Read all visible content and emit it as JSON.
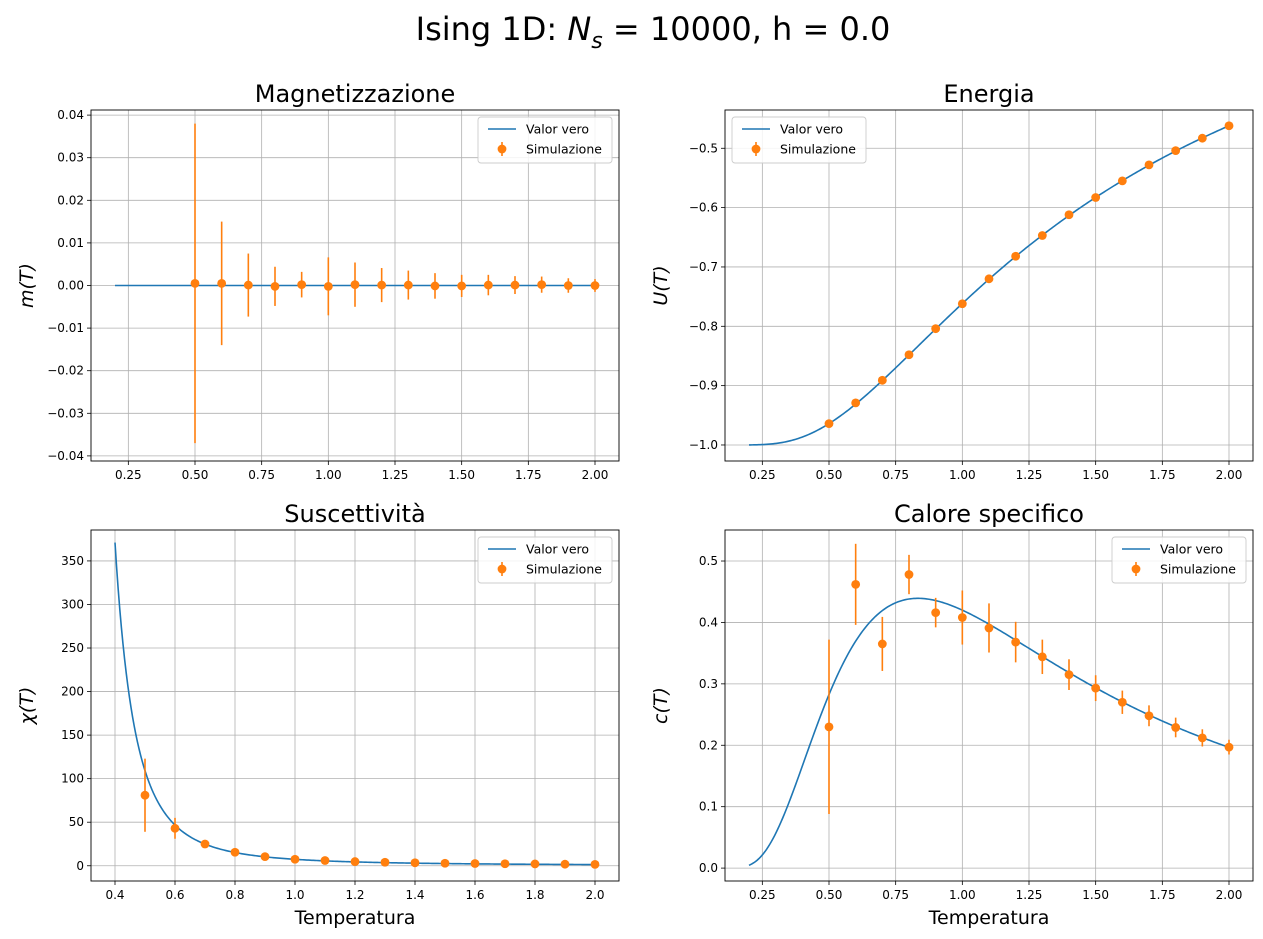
{
  "figure": {
    "suptitle_prefix": "Ising 1D: ",
    "suptitle_symbol": "N",
    "suptitle_subscript": "s",
    "suptitle_suffix": " = 10000, h = 0.0"
  },
  "colors": {
    "theory": "#1f77b4",
    "simulation": "#ff7f0e",
    "grid": "#b0b0b0"
  },
  "chart_data": [
    {
      "type": "line",
      "title": "Magnetizzazione",
      "xlabel": "",
      "ylabel": "m(T)",
      "xlim": [
        0.11,
        2.09
      ],
      "ylim": [
        -0.0412,
        0.0412
      ],
      "xticks": [
        0.25,
        0.5,
        0.75,
        1.0,
        1.25,
        1.5,
        1.75,
        2.0
      ],
      "xtick_labels": [
        "0.25",
        "0.50",
        "0.75",
        "1.00",
        "1.25",
        "1.50",
        "1.75",
        "2.00"
      ],
      "yticks": [
        -0.04,
        -0.03,
        -0.02,
        -0.01,
        0.0,
        0.01,
        0.02,
        0.03,
        0.04
      ],
      "ytick_labels": [
        "−0.04",
        "−0.03",
        "−0.02",
        "−0.01",
        "0.00",
        "0.01",
        "0.02",
        "0.03",
        "0.04"
      ],
      "grid": true,
      "legend_position": "top-right",
      "series": [
        {
          "name": "Valor vero",
          "kind": "line",
          "x": [
            0.2,
            2.0
          ],
          "y": [
            0.0,
            0.0
          ]
        },
        {
          "name": "Simulazione",
          "kind": "errorbar",
          "x": [
            0.5,
            0.6,
            0.7,
            0.8,
            0.9,
            1.0,
            1.1,
            1.2,
            1.3,
            1.4,
            1.5,
            1.6,
            1.7,
            1.8,
            1.9,
            2.0
          ],
          "y": [
            0.0005,
            0.0005,
            0.0001,
            -0.0002,
            0.0002,
            -0.0002,
            0.0002,
            0.0001,
            0.0001,
            -0.0001,
            -0.0001,
            0.0001,
            0.0001,
            0.0002,
            0.0,
            0.0
          ],
          "yerr": [
            0.0375,
            0.0145,
            0.0074,
            0.0046,
            0.003,
            0.0068,
            0.0052,
            0.004,
            0.0034,
            0.003,
            0.0026,
            0.0024,
            0.0021,
            0.0019,
            0.0017,
            0.0015
          ]
        }
      ]
    },
    {
      "type": "line",
      "title": "Energia",
      "xlabel": "",
      "ylabel": "U(T)",
      "xlim": [
        0.11,
        2.09
      ],
      "ylim": [
        -1.027,
        -0.4355
      ],
      "xticks": [
        0.25,
        0.5,
        0.75,
        1.0,
        1.25,
        1.5,
        1.75,
        2.0
      ],
      "xtick_labels": [
        "0.25",
        "0.50",
        "0.75",
        "1.00",
        "1.25",
        "1.50",
        "1.75",
        "2.00"
      ],
      "yticks": [
        -1.0,
        -0.9,
        -0.8,
        -0.7,
        -0.6,
        -0.5
      ],
      "ytick_labels": [
        "−1.0",
        "−0.9",
        "−0.8",
        "−0.7",
        "−0.6",
        "−0.5"
      ],
      "grid": true,
      "legend_position": "top-left",
      "series": [
        {
          "name": "Valor vero",
          "kind": "line",
          "function": "energy",
          "x_range": [
            0.2,
            2.0
          ]
        },
        {
          "name": "Simulazione",
          "kind": "errorbar",
          "x": [
            0.5,
            0.6,
            0.7,
            0.8,
            0.9,
            1.0,
            1.1,
            1.2,
            1.3,
            1.4,
            1.5,
            1.6,
            1.7,
            1.8,
            1.9,
            2.0
          ],
          "y": [
            -0.964,
            -0.929,
            -0.891,
            -0.848,
            -0.804,
            -0.762,
            -0.72,
            -0.682,
            -0.647,
            -0.612,
            -0.583,
            -0.555,
            -0.528,
            -0.504,
            -0.483,
            -0.462
          ],
          "yerr": [
            0.004,
            0.004,
            0.004,
            0.004,
            0.004,
            0.004,
            0.004,
            0.004,
            0.004,
            0.004,
            0.004,
            0.004,
            0.004,
            0.004,
            0.004,
            0.004
          ]
        }
      ]
    },
    {
      "type": "line",
      "title": "Suscettività",
      "xlabel": "Temperatura",
      "ylabel": "χ(T)",
      "xlim": [
        0.32,
        2.08
      ],
      "ylim": [
        -17.5,
        385.5
      ],
      "xticks": [
        0.4,
        0.6,
        0.8,
        1.0,
        1.2,
        1.4,
        1.6,
        1.8,
        2.0
      ],
      "xtick_labels": [
        "0.4",
        "0.6",
        "0.8",
        "1.0",
        "1.2",
        "1.4",
        "1.6",
        "1.8",
        "2.0"
      ],
      "yticks": [
        0,
        50,
        100,
        150,
        200,
        250,
        300,
        350
      ],
      "ytick_labels": [
        "0",
        "50",
        "100",
        "150",
        "200",
        "250",
        "300",
        "350"
      ],
      "grid": true,
      "legend_position": "top-right",
      "series": [
        {
          "name": "Valor vero",
          "kind": "line",
          "function": "susceptibility",
          "x_range": [
            0.4,
            2.0
          ]
        },
        {
          "name": "Simulazione",
          "kind": "errorbar",
          "x": [
            0.5,
            0.6,
            0.7,
            0.8,
            0.9,
            1.0,
            1.1,
            1.2,
            1.3,
            1.4,
            1.5,
            1.6,
            1.7,
            1.8,
            1.9,
            2.0
          ],
          "y": [
            81,
            43,
            25,
            15.5,
            10.5,
            7.5,
            6,
            4.8,
            4,
            3.4,
            2.9,
            2.6,
            2.3,
            2.1,
            1.8,
            1.6
          ],
          "yerr": [
            42,
            12,
            4,
            2.5,
            1.5,
            1,
            0.8,
            0.6,
            0.5,
            0.4,
            0.3,
            0.3,
            0.3,
            0.2,
            0.2,
            0.2
          ]
        }
      ]
    },
    {
      "type": "line",
      "title": "Calore specifico",
      "xlabel": "Temperatura",
      "ylabel": "c(T)",
      "xlim": [
        0.11,
        2.09
      ],
      "ylim": [
        -0.021,
        0.5505
      ],
      "xticks": [
        0.25,
        0.5,
        0.75,
        1.0,
        1.25,
        1.5,
        1.75,
        2.0
      ],
      "xtick_labels": [
        "0.25",
        "0.50",
        "0.75",
        "1.00",
        "1.25",
        "1.50",
        "1.75",
        "2.00"
      ],
      "yticks": [
        0.0,
        0.1,
        0.2,
        0.3,
        0.4,
        0.5
      ],
      "ytick_labels": [
        "0.0",
        "0.1",
        "0.2",
        "0.3",
        "0.4",
        "0.5"
      ],
      "grid": true,
      "legend_position": "top-right",
      "series": [
        {
          "name": "Valor vero",
          "kind": "line",
          "function": "specific_heat",
          "x_range": [
            0.2,
            2.0
          ]
        },
        {
          "name": "Simulazione",
          "kind": "errorbar",
          "x": [
            0.5,
            0.6,
            0.7,
            0.8,
            0.9,
            1.0,
            1.1,
            1.2,
            1.3,
            1.4,
            1.5,
            1.6,
            1.7,
            1.8,
            1.9,
            2.0
          ],
          "y": [
            0.23,
            0.462,
            0.365,
            0.478,
            0.416,
            0.408,
            0.391,
            0.368,
            0.344,
            0.315,
            0.293,
            0.27,
            0.248,
            0.229,
            0.212,
            0.197
          ],
          "yerr": [
            0.142,
            0.066,
            0.044,
            0.032,
            0.024,
            0.044,
            0.04,
            0.033,
            0.028,
            0.025,
            0.021,
            0.019,
            0.017,
            0.016,
            0.014,
            0.012
          ]
        }
      ]
    }
  ]
}
